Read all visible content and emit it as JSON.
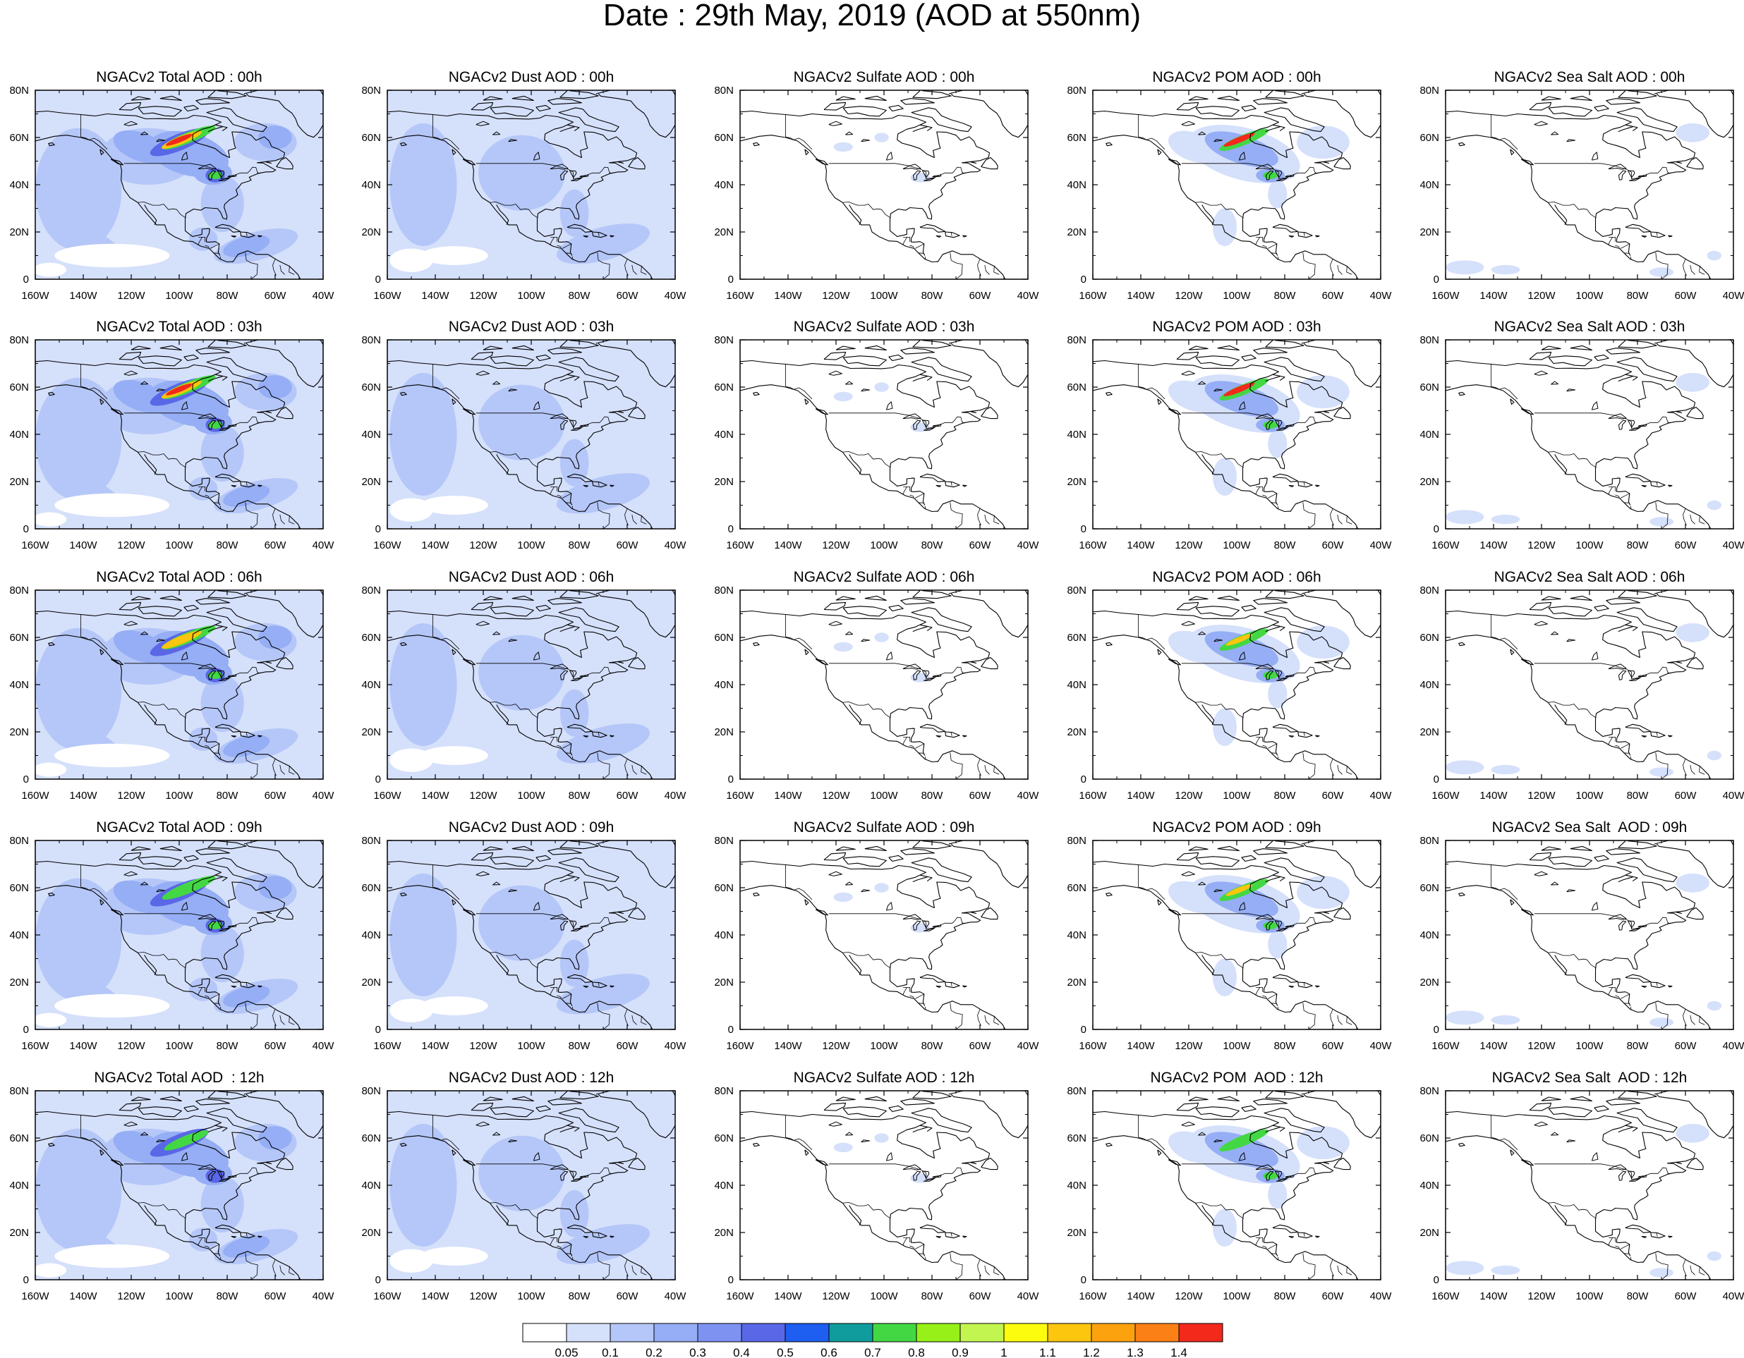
{
  "title": "Date : 29th May, 2019 (AOD at 550nm)",
  "panels": [
    [
      "NGACv2 Total AOD : 00h",
      "NGACv2 Dust AOD : 00h",
      "NGACv2 Sulfate AOD : 00h",
      "NGACv2 POM AOD : 00h",
      "NGACv2 Sea Salt AOD : 00h"
    ],
    [
      "NGACv2 Total AOD : 03h",
      "NGACv2 Dust AOD : 03h",
      "NGACv2 Sulfate AOD : 03h",
      "NGACv2 POM AOD : 03h",
      "NGACv2 Sea Salt AOD : 03h"
    ],
    [
      "NGACv2 Total AOD : 06h",
      "NGACv2 Dust AOD : 06h",
      "NGACv2 Sulfate AOD : 06h",
      "NGACv2 POM AOD : 06h",
      "NGACv2 Sea Salt AOD : 06h"
    ],
    [
      "NGACv2 Total AOD : 09h",
      "NGACv2 Dust AOD : 09h",
      "NGACv2 Sulfate AOD : 09h",
      "NGACv2 POM AOD : 09h",
      "NGACv2 Sea Salt  AOD : 09h"
    ],
    [
      "NGACv2 Total AOD  : 12h",
      "NGACv2 Dust AOD : 12h",
      "NGACv2 Sulfate AOD : 12h",
      "NGACv2 POM  AOD : 12h",
      "NGACv2 Sea Salt  AOD : 12h"
    ]
  ],
  "axes": {
    "x_ticks": [
      "160W",
      "140W",
      "120W",
      "100W",
      "80W",
      "60W",
      "40W"
    ],
    "y_ticks": [
      "0",
      "20N",
      "40N",
      "60N",
      "80N"
    ]
  },
  "colorbar": {
    "labels": [
      "0.05",
      "0.1",
      "0.2",
      "0.3",
      "0.4",
      "0.5",
      "0.6",
      "0.7",
      "0.8",
      "0.9",
      "1",
      "1.1",
      "1.2",
      "1.3",
      "1.4"
    ],
    "colors": [
      "#ffffff",
      "#d5e0fb",
      "#b5c7f8",
      "#95aef5",
      "#7e93f1",
      "#5a67e6",
      "#1e5ef0",
      "#109c9c",
      "#43d843",
      "#97f017",
      "#c3f550",
      "#fcfc0e",
      "#fcc50e",
      "#fca20e",
      "#fb8015",
      "#f3291c"
    ]
  }
}
